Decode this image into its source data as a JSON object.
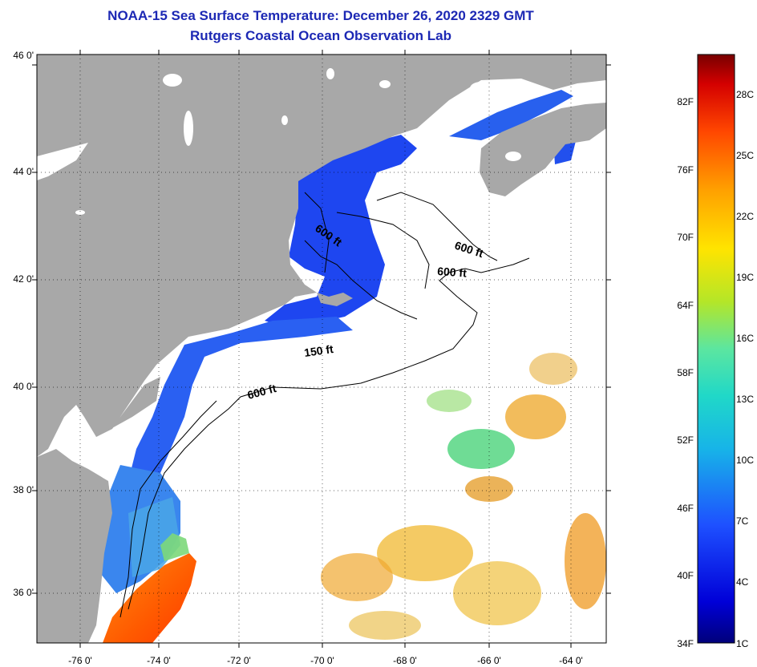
{
  "header": {
    "title": "NOAA-15 Sea Surface Temperature:  December 26, 2020 2329 GMT",
    "subtitle": "Rutgers Coastal Ocean Observation Lab"
  },
  "axes": {
    "latitude_labels": [
      "46 0'",
      "44 0'",
      "42 0'",
      "40 0'",
      "38 0'",
      "36 0'"
    ],
    "longitude_labels": [
      "-76 0'",
      "-74 0'",
      "-72 0'",
      "-70 0'",
      "-68 0'",
      "-66 0'",
      "-64 0'"
    ]
  },
  "contours": {
    "labels": [
      "600 ft",
      "600 ft",
      "600 ft",
      "150 ft",
      "600 ft"
    ]
  },
  "colorbar": {
    "fahrenheit_labels": [
      "82F",
      "76F",
      "70F",
      "64F",
      "58F",
      "52F",
      "46F",
      "40F",
      "34F"
    ],
    "celsius_labels": [
      "28C",
      "25C",
      "22C",
      "19C",
      "16C",
      "13C",
      "10C",
      "7C",
      "4C",
      "1C"
    ]
  },
  "colors": {
    "land": "#a8a8a8",
    "cloud": "#ffffff",
    "title": "#1c28b4",
    "cold": "#1b3cf0",
    "warm": "#f0a020"
  }
}
